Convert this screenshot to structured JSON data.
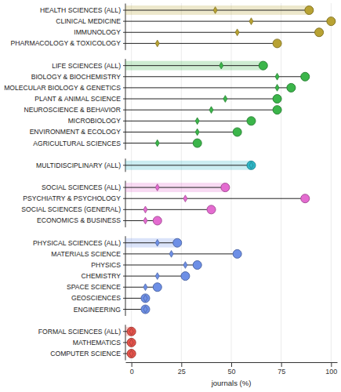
{
  "chart_data": {
    "type": "dot",
    "orientation": "horizontal",
    "grid": true,
    "x_label": "journals (%)",
    "xlim": [
      -3,
      103
    ],
    "xticks": [
      0,
      25,
      50,
      75,
      100
    ],
    "categories": [
      "HEALTH SCIENCES (ALL)",
      "CLINICAL MEDICINE",
      "IMMUNOLOGY",
      "PHARMACOLOGY & TOXICOLOGY",
      "LIFE SCIENCES (ALL)",
      "BIOLOGY & BIOCHEMISTRY",
      "MOLECULAR BIOLOGY & GENETICS",
      "PLANT & ANIMAL SCIENCE",
      "NEUROSCIENCE & BEHAVIOR",
      "MICROBIOLOGY",
      "ENVIRONMENT & ECOLOGY",
      "AGRICULTURAL SCIENCES",
      "MULTIDISCIPLINARY (ALL)",
      "SOCIAL SCIENCES (ALL)",
      "PSYCHIATRY & PSYCHOLOGY",
      "SOCIAL SCIENCES (GENERAL)",
      "ECONOMICS & BUSINESS",
      "PHYSICAL SCIENCES (ALL)",
      "MATERIALS SCIENCE",
      "PHYSICS",
      "CHEMISTRY",
      "SPACE SCIENCE",
      "GEOSCIENCES",
      "ENGINEERING",
      "FORMAL SCIENCES (ALL)",
      "MATHEMATICS",
      "COMPUTER SCIENCE"
    ],
    "colors": [
      "#b8a233",
      "#b8a233",
      "#b8a233",
      "#b8a233",
      "#3bb54a",
      "#3bb54a",
      "#3bb54a",
      "#3bb54a",
      "#3bb54a",
      "#3bb54a",
      "#3bb54a",
      "#3bb54a",
      "#2fb8c8",
      "#e46bd0",
      "#e46bd0",
      "#e46bd0",
      "#e46bd0",
      "#6d8fe6",
      "#6d8fe6",
      "#6d8fe6",
      "#6d8fe6",
      "#6d8fe6",
      "#6d8fe6",
      "#6d8fe6",
      "#e4544c",
      "#e4544c",
      "#e4544c"
    ],
    "series": [
      {
        "marker": "diamond",
        "values": [
          42,
          60,
          53,
          13,
          45,
          73,
          73,
          47,
          40,
          33,
          33,
          13,
          60,
          13,
          27,
          7,
          7,
          13,
          20,
          27,
          13,
          7,
          7,
          7,
          0,
          0,
          0
        ]
      },
      {
        "marker": "circle",
        "values": [
          89,
          100,
          94,
          73,
          66,
          87,
          80,
          73,
          73,
          60,
          53,
          33,
          60,
          47,
          87,
          40,
          13,
          23,
          53,
          33,
          27,
          13,
          7,
          7,
          0,
          0,
          0
        ]
      }
    ]
  }
}
